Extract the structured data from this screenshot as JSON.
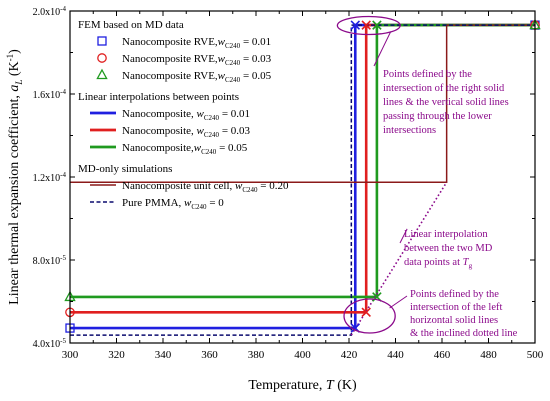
{
  "chart_data": {
    "type": "line",
    "xlabel": "Temperature, T (K)",
    "xlabel_parts": [
      "Temperature, ",
      "T",
      " (K)"
    ],
    "ylabel_parts": [
      "Linear thermal expansion coefficient, ",
      "a",
      "L",
      " (K",
      "-1",
      ")"
    ],
    "xlim": [
      300,
      500
    ],
    "ylim": [
      4e-05,
      0.0002
    ],
    "x_ticks": [
      300,
      320,
      340,
      360,
      380,
      400,
      420,
      440,
      460,
      480,
      500
    ],
    "x_tick_labels": [
      "300",
      "320",
      "340",
      "360",
      "380",
      "400",
      "420",
      "440",
      "460",
      "480",
      "500"
    ],
    "y_ticks": [
      4e-05,
      8e-05,
      0.00012,
      0.00016,
      0.0002
    ],
    "y_tick_labels": [
      {
        "base": "4.0x10",
        "exp": "-5"
      },
      {
        "base": "8.0x10",
        "exp": "-5"
      },
      {
        "base": "1.2x10",
        "exp": "-4"
      },
      {
        "base": "1.6x10",
        "exp": "-4"
      },
      {
        "base": "2.0x10",
        "exp": "-4"
      }
    ],
    "legend": {
      "placement": "upper-left",
      "groups": [
        {
          "header": "FEM based on MD data",
          "entries": [
            {
              "marker": "square",
              "color": "#1f1fe0",
              "text": "Nanocomposite RVE,",
              "var": "w",
              "sub": "C240",
              "value": " = 0.01"
            },
            {
              "marker": "circle",
              "color": "#e01f1f",
              "text": "Nanocomposite RVE,",
              "var": "w",
              "sub": "C240",
              "value": " = 0.03"
            },
            {
              "marker": "triangle",
              "color": "#1f9a1f",
              "text": "Nanocomposite RVE,",
              "var": "w",
              "sub": "C240",
              "value": " = 0.05"
            }
          ]
        },
        {
          "header": "Linear interpolations between points",
          "entries": [
            {
              "line": "solid-thick",
              "color": "#1f1fe0",
              "text": "Nanocomposite, ",
              "var": "w",
              "sub": "C240",
              "value": " = 0.01"
            },
            {
              "line": "solid-thick",
              "color": "#e01f1f",
              "text": "Nanocomposite, ",
              "var": "w",
              "sub": "C240",
              "value": " = 0.03"
            },
            {
              "line": "solid-thick",
              "color": "#1f9a1f",
              "text": "Nanocomposite,",
              "var": "w",
              "sub": "C240",
              "value": " = 0.05"
            }
          ]
        },
        {
          "header": "MD-only simulations",
          "entries": [
            {
              "line": "solid",
              "color": "#8b1a1a",
              "text": "Nanocomposite unit cell, ",
              "var": "w",
              "sub": "C240",
              "value": " = 0.20"
            },
            {
              "line": "dashed",
              "color": "#0a0a6e",
              "text": "Pure PMMA,  ",
              "var": "w",
              "sub": "C240",
              "value": " = 0"
            }
          ]
        }
      ]
    },
    "series": [
      {
        "name": "Nanocomposite, wC240 = 0.01",
        "color": "#1f1fe0",
        "style": "solid-thick",
        "points": [
          [
            300,
            4.72e-05
          ],
          [
            422.7,
            4.72e-05
          ],
          [
            422.7,
            0.0001932
          ],
          [
            500,
            0.0001932
          ]
        ]
      },
      {
        "name": "Nanocomposite, wC240 = 0.03",
        "color": "#e01f1f",
        "style": "solid-thick",
        "points": [
          [
            300,
            5.48e-05
          ],
          [
            427.4,
            5.48e-05
          ],
          [
            427.4,
            0.0001932
          ],
          [
            500,
            0.0001932
          ]
        ]
      },
      {
        "name": "Nanocomposite, wC240 = 0.05",
        "color": "#1f9a1f",
        "style": "solid-thick",
        "points": [
          [
            300,
            6.22e-05
          ],
          [
            432.0,
            6.22e-05
          ],
          [
            432.0,
            0.0001932
          ],
          [
            500,
            0.0001932
          ]
        ]
      },
      {
        "name": "Nanocomposite unit cell, wC240 = 0.20",
        "color": "#8b1a1a",
        "style": "solid",
        "points": [
          [
            300,
            0.0001175
          ],
          [
            462.0,
            0.0001175
          ],
          [
            462.0,
            0.0001932
          ],
          [
            500,
            0.0001932
          ]
        ]
      },
      {
        "name": "Pure PMMA, wC240 = 0",
        "color": "#0a0a6e",
        "style": "dashed",
        "points": [
          [
            300,
            4.38e-05
          ],
          [
            421.0,
            4.38e-05
          ],
          [
            421.0,
            0.0001932
          ],
          [
            500,
            0.0001932
          ]
        ]
      },
      {
        "name": "Linear interpolation between the two MD data points",
        "color": "#8b0a8b",
        "style": "dotted",
        "points": [
          [
            421.0,
            4.38e-05
          ],
          [
            462.0,
            0.0001175
          ]
        ]
      }
    ],
    "markers": [
      {
        "shape": "square",
        "color": "#1f1fe0",
        "points": [
          [
            300,
            4.72e-05
          ],
          [
            500,
            0.0001932
          ]
        ]
      },
      {
        "shape": "circle",
        "color": "#e01f1f",
        "points": [
          [
            300,
            5.48e-05
          ],
          [
            500,
            0.0001932
          ]
        ]
      },
      {
        "shape": "triangle",
        "color": "#1f9a1f",
        "points": [
          [
            300,
            6.22e-05
          ],
          [
            500,
            0.0001932
          ]
        ]
      }
    ],
    "cross_points": [
      {
        "color": "#1f1fe0",
        "x": 422.7,
        "y": 4.72e-05
      },
      {
        "color": "#e01f1f",
        "x": 427.4,
        "y": 5.48e-05
      },
      {
        "color": "#1f9a1f",
        "x": 432.0,
        "y": 6.22e-05
      },
      {
        "color": "#1f1fe0",
        "x": 422.7,
        "y": 0.0001932
      },
      {
        "color": "#e01f1f",
        "x": 427.4,
        "y": 0.0001932
      },
      {
        "color": "#1f9a1f",
        "x": 432.0,
        "y": 0.0001932
      }
    ],
    "annotations": {
      "upper": {
        "lines": [
          "Points defined by the",
          "intersection of the right solid",
          "lines & the vertical solid lines",
          "passing through the lower",
          "intersections"
        ],
        "ellipse_center": [
          428.5,
          0.000193
        ],
        "ellipse_rx_units": 13.5,
        "ellipse_ry_units": 6e-06
      },
      "middle": {
        "lines": [
          "Linear interpolation",
          "between the two MD"
        ],
        "last_line_prefix": "data points at ",
        "last_line_var": "T",
        "last_line_sub": "g"
      },
      "lower": {
        "lines": [
          "Points defined by the",
          "intersection of the left",
          "horizontal solid lines",
          "& the inclined dotted line"
        ],
        "ellipse_center": [
          428.0,
          5.3e-05
        ],
        "ellipse_rx_units": 11.0,
        "ellipse_ry_units": 1.7e-05
      }
    },
    "colors": {
      "annotation": "#8b0a8b",
      "axis": "#000000"
    },
    "grid": false
  }
}
